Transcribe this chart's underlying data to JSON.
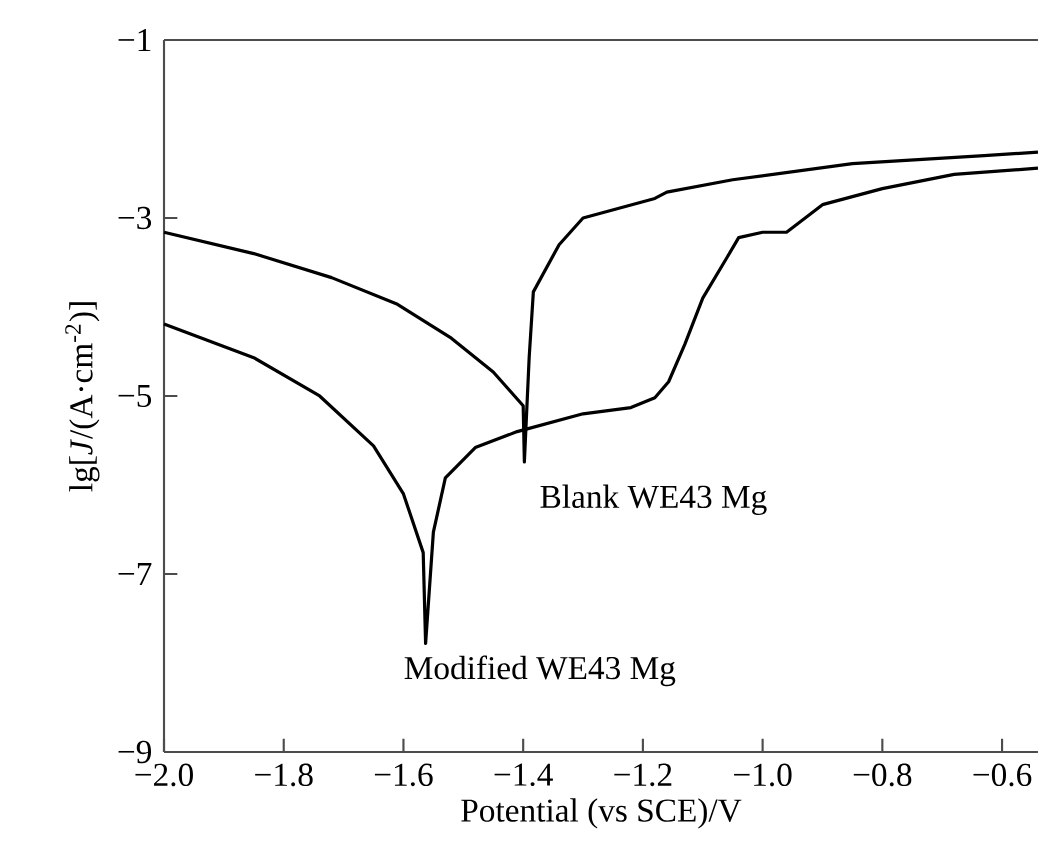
{
  "chart_data": {
    "type": "line",
    "xlabel": "Potential (vs SCE)/V",
    "ylabel": "lg[*J*/(A·cm$^{-2}$)]",
    "xlim": [
      -2.0,
      -0.54
    ],
    "ylim": [
      -9,
      -1
    ],
    "xticks": [
      {
        "value": -2.0,
        "label": "−2.0"
      },
      {
        "value": -1.8,
        "label": "−1.8"
      },
      {
        "value": -1.6,
        "label": "−1.6"
      },
      {
        "value": -1.4,
        "label": "−1.4"
      },
      {
        "value": -1.2,
        "label": "−1.2"
      },
      {
        "value": -1.0,
        "label": "−1.0"
      },
      {
        "value": -0.8,
        "label": "−0.8"
      },
      {
        "value": -0.6,
        "label": "−0.6"
      }
    ],
    "yticks": [
      {
        "value": -1,
        "label": "−1"
      },
      {
        "value": -3,
        "label": "−3"
      },
      {
        "value": -5,
        "label": "−5"
      },
      {
        "value": -7,
        "label": "−7"
      },
      {
        "value": -9,
        "label": "−9"
      }
    ],
    "grid": false,
    "marker": "none",
    "line_style": "solid",
    "series": [
      {
        "color": "#000000",
        "x": [
          -2.0,
          -1.85,
          -1.72,
          -1.61,
          -1.52,
          -1.45,
          -1.4,
          -1.398,
          -1.39,
          -1.383,
          -1.34,
          -1.3,
          -1.18,
          -1.16,
          -1.05,
          -0.85,
          -0.63,
          -0.54
        ],
        "values": [
          -3.16,
          -3.4,
          -3.67,
          -3.97,
          -4.35,
          -4.73,
          -5.11,
          -5.74,
          -4.57,
          -3.83,
          -3.3,
          -3.0,
          -2.78,
          -2.71,
          -2.57,
          -2.39,
          -2.3,
          -2.26
        ]
      },
      {
        "color": "#000000",
        "x": [
          -2.0,
          -1.85,
          -1.74,
          -1.65,
          -1.6,
          -1.567,
          -1.563,
          -1.55,
          -1.53,
          -1.48,
          -1.41,
          -1.3,
          -1.22,
          -1.18,
          -1.157,
          -1.13,
          -1.1,
          -1.06,
          -1.04,
          -1.0,
          -0.96,
          -0.9,
          -0.8,
          -0.68,
          -0.54
        ],
        "values": [
          -4.19,
          -4.57,
          -5.0,
          -5.56,
          -6.1,
          -6.76,
          -7.78,
          -6.53,
          -5.92,
          -5.58,
          -5.4,
          -5.2,
          -5.13,
          -5.02,
          -4.84,
          -4.42,
          -3.9,
          -3.45,
          -3.22,
          -3.16,
          -3.16,
          -2.85,
          -2.67,
          -2.51,
          -2.44
        ]
      }
    ],
    "annotations": [
      "Blank WE43 Mg",
      "Modified WE43 Mg"
    ]
  }
}
